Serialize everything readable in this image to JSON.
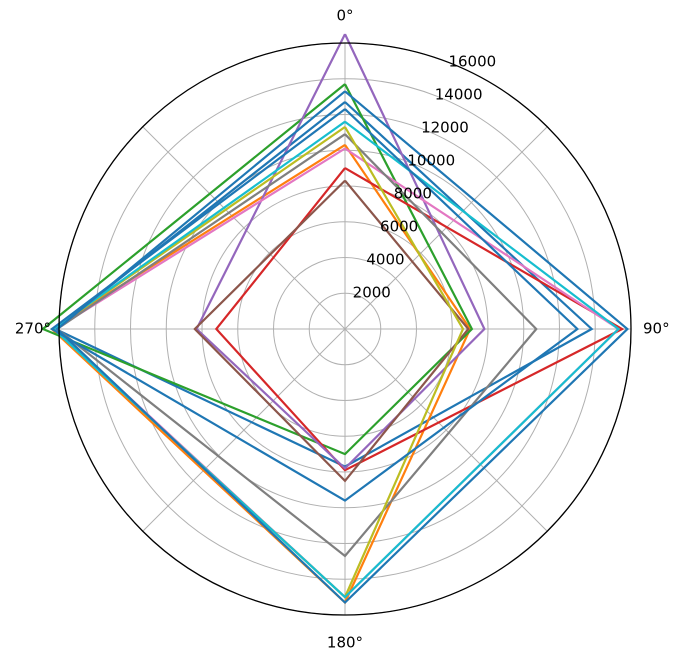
{
  "chart_data": {
    "type": "line",
    "subtype": "polar",
    "title": "",
    "theta_labels": [
      "0°",
      "90°",
      "180°",
      "270°"
    ],
    "theta_values_deg": [
      0,
      90,
      180,
      270
    ],
    "r_ticks": [
      2000,
      4000,
      6000,
      8000,
      10000,
      12000,
      14000,
      16000
    ],
    "r_tick_labels": [
      "2000",
      "4000",
      "6000",
      "8000",
      "10000",
      "12000",
      "14000",
      "16000"
    ],
    "r_max": 16000,
    "grid": true,
    "legend": false,
    "series": [
      {
        "color": "#1f77b4",
        "values": [
          12700,
          13800,
          7700,
          16200
        ]
      },
      {
        "color": "#ff7f0e",
        "values": [
          10300,
          7000,
          15300,
          16400
        ]
      },
      {
        "color": "#2ca02c",
        "values": [
          13700,
          7100,
          7000,
          16900
        ]
      },
      {
        "color": "#d62728",
        "values": [
          9000,
          15500,
          7900,
          7200
        ]
      },
      {
        "color": "#9467bd",
        "values": [
          16500,
          7800,
          7800,
          8300
        ]
      },
      {
        "color": "#8c564b",
        "values": [
          8300,
          6900,
          8500,
          8400
        ]
      },
      {
        "color": "#e377c2",
        "values": [
          10100,
          15300,
          15000,
          16200
        ]
      },
      {
        "color": "#7f7f7f",
        "values": [
          10900,
          10700,
          12700,
          16100
        ]
      },
      {
        "color": "#bcbd22",
        "values": [
          11300,
          6600,
          15000,
          16300
        ]
      },
      {
        "color": "#17becf",
        "values": [
          11600,
          15300,
          15000,
          16300
        ]
      },
      {
        "color": "#1f77b4",
        "values": [
          13300,
          15800,
          15300,
          16100
        ]
      },
      {
        "color": "#1f77b4",
        "values": [
          12300,
          13000,
          9600,
          16400
        ]
      }
    ]
  }
}
